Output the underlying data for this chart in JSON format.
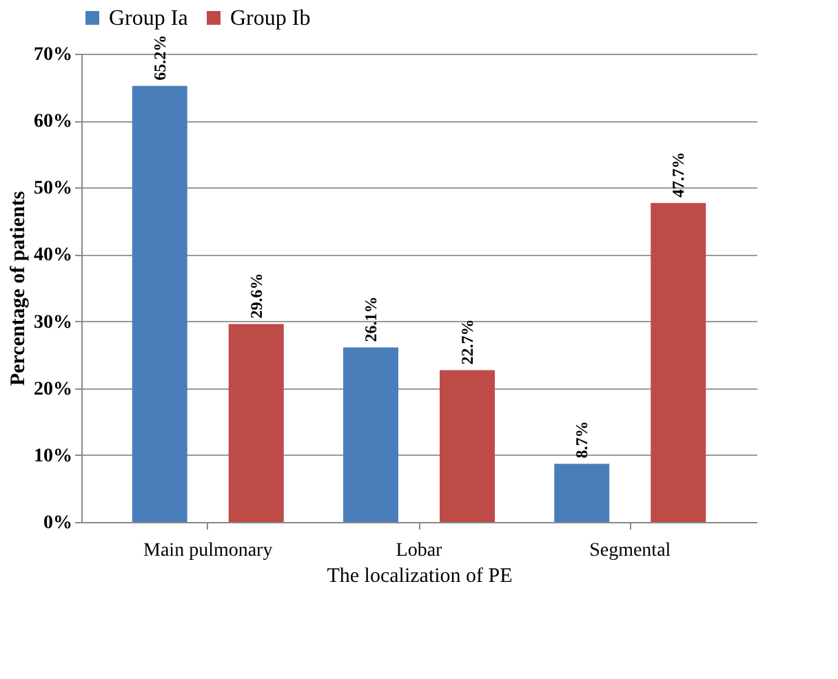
{
  "chart_data": {
    "type": "bar",
    "xlabel": "The localization of PE",
    "ylabel": "Percentage of patients",
    "categories": [
      "Main pulmonary",
      "Lobar",
      "Segmental"
    ],
    "series": [
      {
        "name": "Group Ia",
        "color": "#4a7ebb",
        "values": [
          65.2,
          26.1,
          8.7
        ],
        "value_labels": [
          "65.2%",
          "26.1%",
          "8.7%"
        ]
      },
      {
        "name": "Group Ib",
        "color": "#be4b48",
        "values": [
          29.6,
          22.7,
          47.7
        ],
        "value_labels": [
          "29.6%",
          "22.7%",
          "47.7%"
        ]
      }
    ],
    "ylim": [
      0,
      70
    ],
    "yticks": [
      {
        "value": 0,
        "label": "0%"
      },
      {
        "value": 10,
        "label": "10%"
      },
      {
        "value": 20,
        "label": "20%"
      },
      {
        "value": 30,
        "label": "30%"
      },
      {
        "value": 40,
        "label": "40%"
      },
      {
        "value": 50,
        "label": "50%"
      },
      {
        "value": 60,
        "label": "60%"
      },
      {
        "value": 70,
        "label": "70%"
      }
    ],
    "grid": "y",
    "legend": "top"
  }
}
